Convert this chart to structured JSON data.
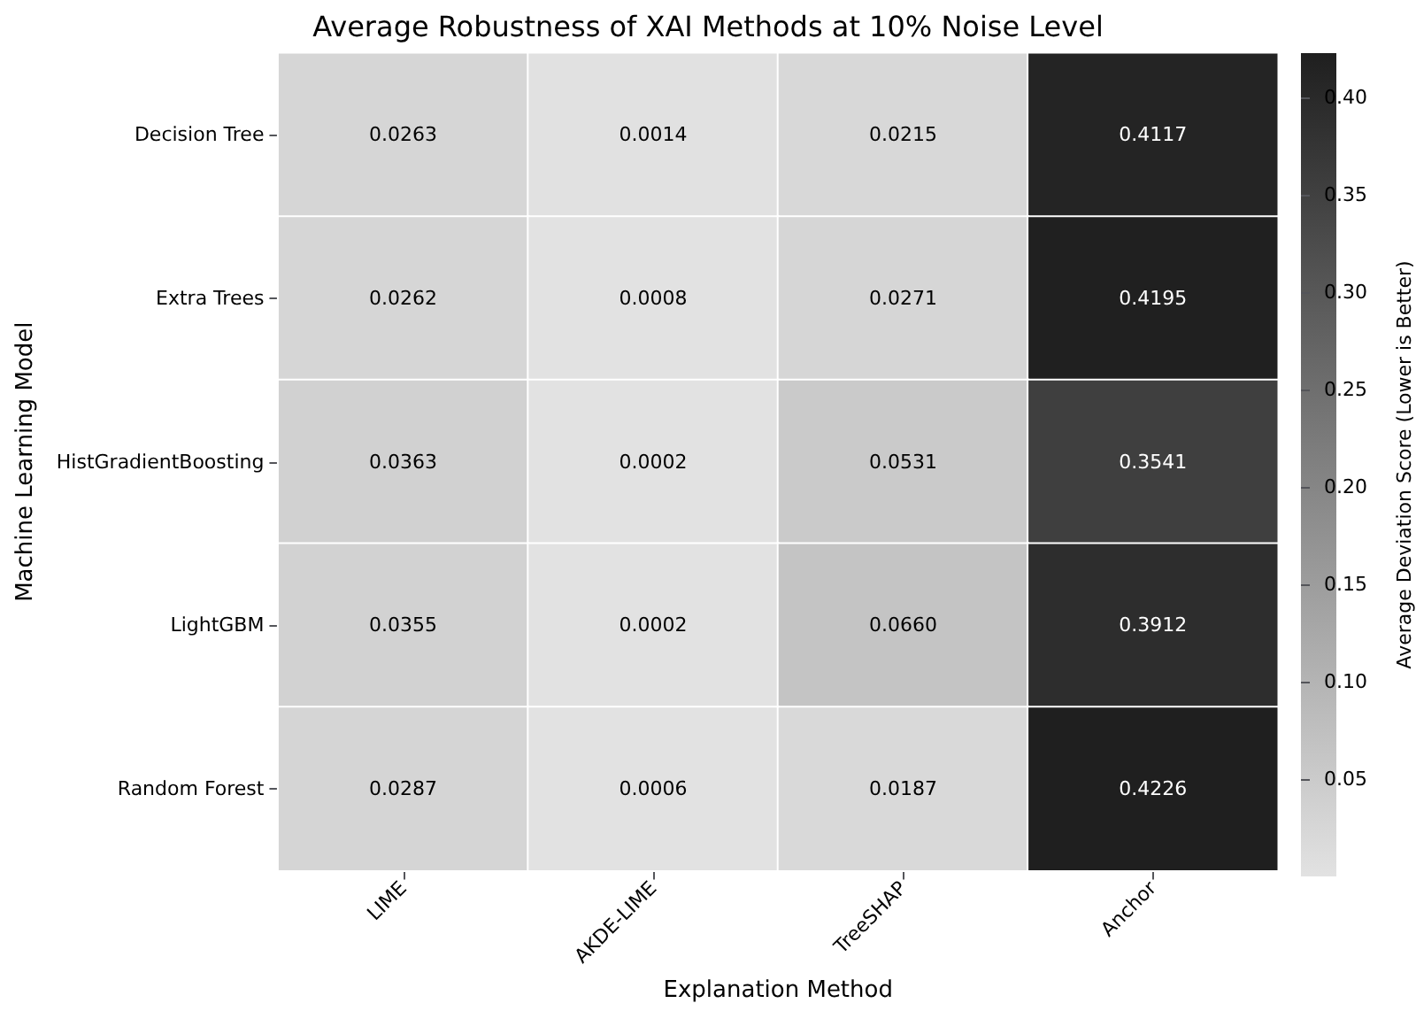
{
  "chart_data": {
    "type": "heatmap",
    "title": "Average Robustness of XAI Methods at 10% Noise Level",
    "xlabel": "Explanation Method",
    "ylabel": "Machine Learning Model",
    "clabel": "Average Deviation Score (Lower is Better)",
    "categories": [
      "LIME",
      "AKDE-LIME",
      "TreeSHAP",
      "Anchor"
    ],
    "y_categories": [
      "Decision Tree",
      "Extra Trees",
      "HistGradientBoosting",
      "LightGBM",
      "Random Forest"
    ],
    "cells": [
      [
        0.0263,
        0.0014,
        0.0215,
        0.4117
      ],
      [
        0.0262,
        0.0008,
        0.0271,
        0.4195
      ],
      [
        0.0363,
        0.0002,
        0.0531,
        0.3541
      ],
      [
        0.0355,
        0.0002,
        0.066,
        0.3912
      ],
      [
        0.0287,
        0.0006,
        0.0187,
        0.4226
      ]
    ],
    "cell_labels": [
      [
        "0.0263",
        "0.0014",
        "0.0215",
        "0.4117"
      ],
      [
        "0.0262",
        "0.0008",
        "0.0271",
        "0.4195"
      ],
      [
        "0.0363",
        "0.0002",
        "0.0531",
        "0.3541"
      ],
      [
        "0.0355",
        "0.0002",
        "0.0660",
        "0.3912"
      ],
      [
        "0.0287",
        "0.0006",
        "0.0187",
        "0.4226"
      ]
    ],
    "clim": [
      0.0002,
      0.4226
    ],
    "cticks": [
      0.05,
      {
        "value": 0.1,
        "label": "0.10"
      },
      0.15,
      {
        "value": 0.2,
        "label": "0.20"
      },
      0.25,
      {
        "value": 0.3,
        "label": "0.30"
      },
      0.35,
      {
        "value": 0.4,
        "label": "0.40"
      }
    ]
  }
}
